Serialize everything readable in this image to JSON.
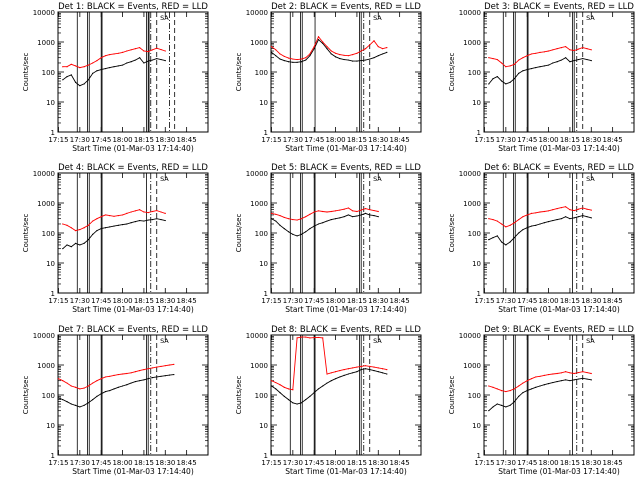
{
  "colors": {
    "events": "#000000",
    "lld": "#ff0000",
    "axis": "#000000",
    "background": "#ffffff"
  },
  "common": {
    "ylabel": "Counts/sec",
    "xlabel": "Start Time (01-Mar-03 17:14:40)",
    "xticks": [
      17.25,
      17.5,
      17.75,
      18.0,
      18.25,
      18.5,
      18.75
    ],
    "xtick_labels": [
      "17:15",
      "17:30",
      "17:45",
      "18:00",
      "18:15",
      "18:30",
      "18:45"
    ],
    "yticks": [
      1,
      10,
      100,
      1000,
      10000
    ],
    "ytick_labels": [
      "1",
      "10",
      "100",
      "1000",
      "10000"
    ],
    "xlim": [
      17.2444,
      19.0
    ],
    "ylim": [
      1,
      10000
    ],
    "marker_label": "SA"
  },
  "chart_data": [
    {
      "type": "line",
      "title": "Det 1: BLACK = Events, RED = LLD",
      "x": [
        17.3,
        17.35,
        17.4,
        17.45,
        17.5,
        17.55,
        17.6,
        17.65,
        17.7,
        17.75,
        17.8,
        17.85,
        17.9,
        17.95,
        18.0,
        18.05,
        18.1,
        18.15,
        18.2,
        18.25,
        18.3,
        18.35,
        18.4,
        18.45,
        18.5
      ],
      "series": [
        {
          "name": "Events",
          "values": [
            55,
            70,
            80,
            45,
            35,
            40,
            55,
            90,
            110,
            120,
            130,
            140,
            150,
            160,
            170,
            200,
            220,
            250,
            300,
            200,
            230,
            250,
            280,
            260,
            240
          ]
        },
        {
          "name": "LLD",
          "values": [
            150,
            150,
            180,
            160,
            140,
            150,
            170,
            200,
            240,
            300,
            350,
            380,
            400,
            420,
            450,
            500,
            550,
            600,
            650,
            500,
            480,
            550,
            620,
            560,
            500
          ]
        }
      ],
      "vlines_solid": [
        17.47,
        17.59,
        17.61,
        17.75,
        17.76,
        18.28,
        18.3,
        18.31
      ],
      "vlines_dashdot": [
        18.33,
        18.55
      ],
      "vlines_dashed": [
        18.4,
        18.61
      ],
      "marker_x": 18.49
    },
    {
      "type": "line",
      "title": "Det 2: BLACK = Events, RED = LLD",
      "x": [
        17.25,
        17.3,
        17.35,
        17.4,
        17.45,
        17.5,
        17.55,
        17.6,
        17.65,
        17.7,
        17.75,
        17.8,
        17.85,
        17.9,
        17.95,
        18.0,
        18.05,
        18.1,
        18.15,
        18.2,
        18.25,
        18.3,
        18.35,
        18.4,
        18.45,
        18.5,
        18.55,
        18.6
      ],
      "series": [
        {
          "name": "Events",
          "values": [
            450,
            350,
            270,
            240,
            220,
            210,
            210,
            220,
            250,
            350,
            600,
            1200,
            900,
            600,
            400,
            320,
            280,
            260,
            250,
            230,
            230,
            240,
            250,
            270,
            300,
            350,
            400,
            450
          ]
        },
        {
          "name": "LLD",
          "values": [
            700,
            550,
            400,
            330,
            290,
            270,
            260,
            270,
            300,
            400,
            700,
            1500,
            1000,
            700,
            500,
            420,
            380,
            360,
            350,
            380,
            420,
            500,
            600,
            800,
            1100,
            700,
            600,
            650
          ]
        }
      ],
      "vlines_solid": [
        17.47,
        17.59,
        17.61,
        17.76,
        18.28,
        18.3
      ],
      "vlines_dashdot": [
        18.33
      ],
      "vlines_dashed": [
        18.4
      ],
      "marker_x": 18.49
    },
    {
      "type": "line",
      "title": "Det 3: BLACK = Events, RED = LLD",
      "x": [
        17.3,
        17.35,
        17.4,
        17.45,
        17.5,
        17.55,
        17.6,
        17.65,
        17.7,
        17.75,
        17.8,
        17.85,
        17.9,
        17.95,
        18.0,
        18.05,
        18.1,
        18.15,
        18.2,
        18.25,
        18.3,
        18.35,
        18.4,
        18.45,
        18.5
      ],
      "series": [
        {
          "name": "Events",
          "values": [
            40,
            60,
            70,
            50,
            40,
            45,
            60,
            90,
            110,
            120,
            130,
            140,
            150,
            160,
            170,
            200,
            220,
            250,
            300,
            220,
            240,
            260,
            280,
            260,
            240
          ]
        },
        {
          "name": "LLD",
          "values": [
            300,
            280,
            260,
            200,
            150,
            160,
            180,
            250,
            300,
            350,
            400,
            420,
            450,
            470,
            500,
            550,
            600,
            650,
            700,
            550,
            520,
            580,
            650,
            600,
            550
          ]
        }
      ],
      "vlines_solid": [
        17.47,
        17.59,
        17.61,
        17.75,
        17.76,
        18.28,
        18.3
      ],
      "vlines_dashdot": [
        18.33
      ],
      "vlines_dashed": [
        18.4
      ],
      "marker_x": 18.49
    },
    {
      "type": "line",
      "title": "Det 4: BLACK = Events, RED = LLD",
      "x": [
        17.3,
        17.35,
        17.4,
        17.45,
        17.5,
        17.55,
        17.6,
        17.65,
        17.7,
        17.75,
        17.8,
        17.85,
        17.9,
        17.95,
        18.0,
        18.05,
        18.1,
        18.15,
        18.2,
        18.25,
        18.3,
        18.35,
        18.4,
        18.45,
        18.5
      ],
      "series": [
        {
          "name": "Events",
          "values": [
            30,
            40,
            35,
            45,
            40,
            45,
            60,
            90,
            120,
            140,
            150,
            160,
            170,
            180,
            190,
            200,
            220,
            240,
            260,
            250,
            270,
            280,
            300,
            280,
            260
          ]
        },
        {
          "name": "LLD",
          "values": [
            200,
            180,
            150,
            120,
            130,
            150,
            180,
            250,
            300,
            350,
            400,
            380,
            360,
            380,
            400,
            450,
            500,
            550,
            600,
            500,
            480,
            520,
            560,
            500,
            450
          ]
        }
      ],
      "vlines_solid": [
        17.47,
        17.59,
        17.61,
        17.75,
        17.76,
        18.28
      ],
      "vlines_dashdot": [
        18.33
      ],
      "vlines_dashed": [
        18.4
      ],
      "marker_x": 18.49
    },
    {
      "type": "line",
      "title": "Det 5: BLACK = Events, RED = LLD",
      "x": [
        17.25,
        17.3,
        17.35,
        17.4,
        17.45,
        17.5,
        17.55,
        17.6,
        17.65,
        17.7,
        17.75,
        17.8,
        17.85,
        17.9,
        17.95,
        18.0,
        18.05,
        18.1,
        18.15,
        18.2,
        18.25,
        18.3,
        18.35,
        18.4,
        18.45,
        18.5
      ],
      "series": [
        {
          "name": "Events",
          "values": [
            300,
            250,
            180,
            140,
            110,
            90,
            80,
            90,
            110,
            140,
            170,
            200,
            220,
            250,
            280,
            300,
            320,
            350,
            400,
            350,
            370,
            400,
            450,
            400,
            380,
            350
          ]
        },
        {
          "name": "LLD",
          "values": [
            450,
            420,
            380,
            330,
            300,
            280,
            270,
            300,
            350,
            420,
            500,
            550,
            520,
            500,
            520,
            550,
            580,
            620,
            680,
            550,
            520,
            580,
            650,
            600,
            560,
            520
          ]
        }
      ],
      "vlines_solid": [
        17.47,
        17.59,
        17.61,
        17.75,
        17.76,
        18.28,
        18.3
      ],
      "vlines_dashdot": [
        18.33
      ],
      "vlines_dashed": [
        18.4
      ],
      "marker_x": 18.49
    },
    {
      "type": "line",
      "title": "Det 6: BLACK = Events, RED = LLD",
      "x": [
        17.3,
        17.35,
        17.4,
        17.45,
        17.5,
        17.55,
        17.6,
        17.65,
        17.7,
        17.75,
        17.8,
        17.85,
        17.9,
        17.95,
        18.0,
        18.05,
        18.1,
        18.15,
        18.2,
        18.25,
        18.3,
        18.35,
        18.4,
        18.45,
        18.5
      ],
      "series": [
        {
          "name": "Events",
          "values": [
            60,
            70,
            80,
            50,
            40,
            50,
            70,
            100,
            130,
            150,
            170,
            180,
            200,
            220,
            240,
            260,
            280,
            300,
            350,
            300,
            320,
            350,
            380,
            350,
            320
          ]
        },
        {
          "name": "LLD",
          "values": [
            300,
            280,
            250,
            200,
            160,
            180,
            220,
            280,
            350,
            400,
            450,
            470,
            500,
            520,
            550,
            600,
            650,
            700,
            750,
            600,
            560,
            620,
            680,
            620,
            580
          ]
        }
      ],
      "vlines_solid": [
        17.47,
        17.59,
        17.61,
        17.75,
        17.76,
        18.28
      ],
      "vlines_dashdot": [
        18.33
      ],
      "vlines_dashed": [
        18.4
      ],
      "marker_x": 18.49
    },
    {
      "type": "line",
      "title": "Det 7: BLACK = Events, RED = LLD",
      "x": [
        17.25,
        17.3,
        17.35,
        17.4,
        17.45,
        17.5,
        17.55,
        17.6,
        17.65,
        17.7,
        17.75,
        17.8,
        17.85,
        17.9,
        17.95,
        18.0,
        18.05,
        18.1,
        18.15,
        18.2,
        18.25,
        18.3,
        18.35,
        18.4,
        18.45,
        18.5,
        18.55,
        18.6
      ],
      "series": [
        {
          "name": "Events",
          "values": [
            80,
            70,
            60,
            50,
            45,
            40,
            45,
            55,
            70,
            90,
            110,
            130,
            140,
            160,
            180,
            200,
            220,
            250,
            280,
            300,
            320,
            350,
            380,
            400,
            420,
            440,
            460,
            480
          ]
        },
        {
          "name": "LLD",
          "values": [
            350,
            300,
            250,
            200,
            180,
            160,
            170,
            200,
            250,
            300,
            350,
            400,
            420,
            450,
            480,
            500,
            520,
            550,
            600,
            650,
            700,
            750,
            800,
            850,
            900,
            950,
            1000,
            1050
          ]
        }
      ],
      "vlines_solid": [
        17.47,
        17.59,
        17.61,
        17.75,
        17.76,
        18.28,
        18.3
      ],
      "vlines_dashdot": [
        18.33
      ],
      "vlines_dashed": [
        18.4
      ],
      "marker_x": 18.49
    },
    {
      "type": "line",
      "title": "Det 8: BLACK = Events, RED = LLD",
      "x": [
        17.25,
        17.3,
        17.35,
        17.4,
        17.45,
        17.5,
        17.55,
        17.6,
        17.65,
        17.7,
        17.75,
        17.8,
        17.85,
        17.9,
        17.95,
        18.0,
        18.05,
        18.1,
        18.15,
        18.2,
        18.25,
        18.3,
        18.35,
        18.4,
        18.45,
        18.5,
        18.55,
        18.6
      ],
      "series": [
        {
          "name": "Events",
          "values": [
            200,
            160,
            120,
            90,
            70,
            55,
            50,
            55,
            70,
            90,
            120,
            160,
            200,
            250,
            300,
            350,
            400,
            450,
            500,
            550,
            600,
            700,
            750,
            700,
            650,
            600,
            550,
            500
          ]
        },
        {
          "name": "LLD",
          "values": [
            300,
            260,
            220,
            180,
            160,
            150,
            8000,
            8500,
            8500,
            8000,
            8200,
            8300,
            8000,
            500,
            550,
            600,
            650,
            700,
            750,
            800,
            850,
            900,
            950,
            900,
            850,
            800,
            750,
            700
          ]
        }
      ],
      "vlines_solid": [
        17.47,
        17.59,
        17.61,
        17.75,
        17.76,
        18.28,
        18.3
      ],
      "vlines_dashdot": [
        18.33
      ],
      "vlines_dashed": [
        18.4
      ],
      "marker_x": 18.49
    },
    {
      "type": "line",
      "title": "Det 9: BLACK = Events, RED = LLD",
      "x": [
        17.3,
        17.35,
        17.4,
        17.45,
        17.5,
        17.55,
        17.6,
        17.65,
        17.7,
        17.75,
        17.8,
        17.85,
        17.9,
        17.95,
        18.0,
        18.05,
        18.1,
        18.15,
        18.2,
        18.25,
        18.3,
        18.35,
        18.4,
        18.45,
        18.5
      ],
      "series": [
        {
          "name": "Events",
          "values": [
            30,
            40,
            50,
            45,
            40,
            45,
            60,
            90,
            120,
            140,
            160,
            180,
            200,
            220,
            240,
            260,
            280,
            300,
            320,
            300,
            320,
            340,
            360,
            340,
            320
          ]
        },
        {
          "name": "LLD",
          "values": [
            200,
            180,
            160,
            140,
            130,
            140,
            160,
            200,
            250,
            300,
            350,
            400,
            420,
            450,
            480,
            500,
            520,
            550,
            600,
            550,
            520,
            560,
            600,
            560,
            520
          ]
        }
      ],
      "vlines_solid": [
        17.47,
        17.59,
        17.61,
        17.75,
        17.76,
        18.28
      ],
      "vlines_dashdot": [
        18.33
      ],
      "vlines_dashed": [
        18.4
      ],
      "marker_x": 18.49
    }
  ]
}
